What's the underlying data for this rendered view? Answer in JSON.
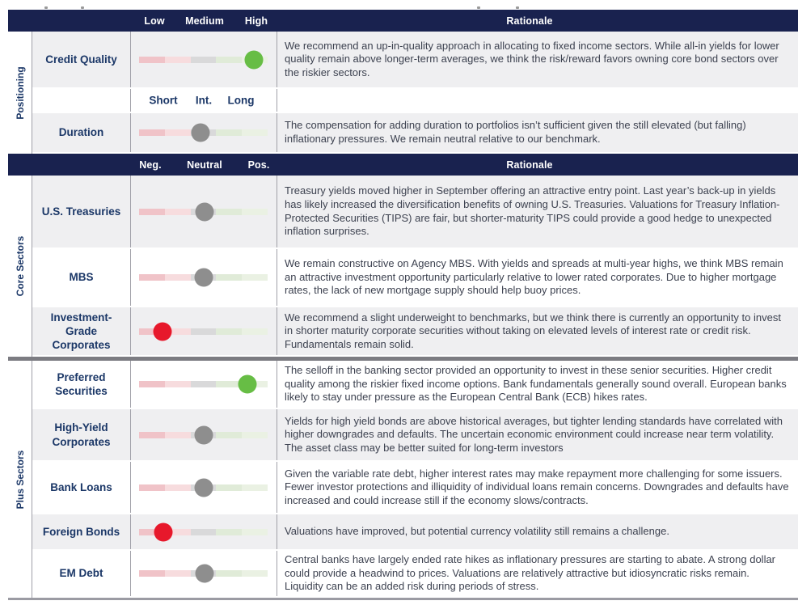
{
  "palette": {
    "header_navy": "#19224f",
    "row_shade": "#efeff1",
    "label_navy": "#1b3767",
    "rationale_text": "#3d4250",
    "divider_gray": "#7c7c82",
    "track": [
      "#f0c3c8",
      "#f7dcde",
      "#d9d9da",
      "#e0ebd8",
      "#eaf1e3"
    ],
    "dot": {
      "green": "#67bd45",
      "gray": "#8e8e8e",
      "red": "#e7182b"
    }
  },
  "sections": [
    {
      "side_label": "Positioning",
      "header": {
        "scale": [
          "Low",
          "Medium",
          "High"
        ],
        "rationale_label": "Rationale"
      },
      "sub_scale": [
        "Short",
        "Int.",
        "Long"
      ],
      "rows": [
        {
          "label": "Credit Quality",
          "dot": {
            "color": "green",
            "pos": 89
          },
          "rationale": "We recommend an up-in-quality approach in allocating to fixed income sectors. While all-in yields for lower quality remain above longer-term averages, we think the risk/reward favors owning core bond sectors over the riskier sectors."
        },
        {
          "label": "Duration",
          "dot": {
            "color": "gray",
            "pos": 48
          },
          "rationale": "The compensation for adding duration to portfolios isn’t sufficient given the still elevated (but falling) inflationary pressures. We remain neutral relative to our benchmark."
        }
      ]
    },
    {
      "side_label": "Core Sectors",
      "header": {
        "scale": [
          "Neg.",
          "Neutral",
          "Pos."
        ],
        "rationale_label": "Rationale"
      },
      "rows": [
        {
          "label": "U.S. Treasuries",
          "dot": {
            "color": "gray",
            "pos": 51
          },
          "rationale": "Treasury yields moved higher in September  offering an attractive entry point. Last year’s back-up in yields has likely increased the diversification benefits of owning U.S. Treasuries. Valuations for Treasury Inflation- Protected Securities (TIPS) are fair, but shorter-maturity TIPS could provide a good hedge to unexpected inflation surprises."
        },
        {
          "label": "MBS",
          "dot": {
            "color": "gray",
            "pos": 50
          },
          "rationale": "We remain constructive on Agency MBS. With yields and spreads at multi-year highs, we think MBS remain an attractive investment opportunity particularly relative to lower rated corporates. Due to higher mortgage rates, the lack of new mortgage supply should help buoy prices."
        },
        {
          "label": "Investment-Grade Corporates",
          "dot": {
            "color": "red",
            "pos": 18
          },
          "rationale": "We recommend a slight underweight to benchmarks, but we think there is currently an opportunity to invest in shorter maturity corporate securities without taking on elevated levels of interest rate or credit risk. Fundamentals remain solid."
        }
      ]
    },
    {
      "side_label": "Plus Sectors",
      "rows": [
        {
          "label": "Preferred Securities",
          "dot": {
            "color": "green",
            "pos": 84
          },
          "rationale": "The selloff in the banking sector provided an opportunity to invest in these senior securities. Higher credit quality among the riskier fixed income options. Bank fundamentals generally sound overall. European banks likely to stay under pressure as the European Central Bank (ECB) hikes rates."
        },
        {
          "label": "High-Yield Corporates",
          "dot": {
            "color": "gray",
            "pos": 50
          },
          "rationale": "Yields for high yield bonds are above historical averages, but tighter lending standards have correlated with higher downgrades and defaults. The uncertain economic environment could increase near term volatility. The asset class may be better suited for long-term investors"
        },
        {
          "label": "Bank Loans",
          "dot": {
            "color": "gray",
            "pos": 50
          },
          "rationale": "Given the variable rate debt, higher interest rates may make repayment more challenging for some issuers. Fewer investor protections and illiquidity of individual loans remain concerns. Downgrades and defaults have increased and could increase still if the economy slows/contracts."
        },
        {
          "label": "Foreign Bonds",
          "dot": {
            "color": "red",
            "pos": 19
          },
          "rationale": "Valuations have improved, but potential currency volatility still remains a challenge."
        },
        {
          "label": "EM Debt",
          "dot": {
            "color": "gray",
            "pos": 51
          },
          "rationale": "Central banks have largely ended rate hikes as inflationary pressures are starting to abate. A strong dollar could provide a headwind to prices. Valuations are relatively attractive but idiosyncratic risks remain. Liquidity can be an added risk during periods of stress."
        }
      ]
    }
  ]
}
